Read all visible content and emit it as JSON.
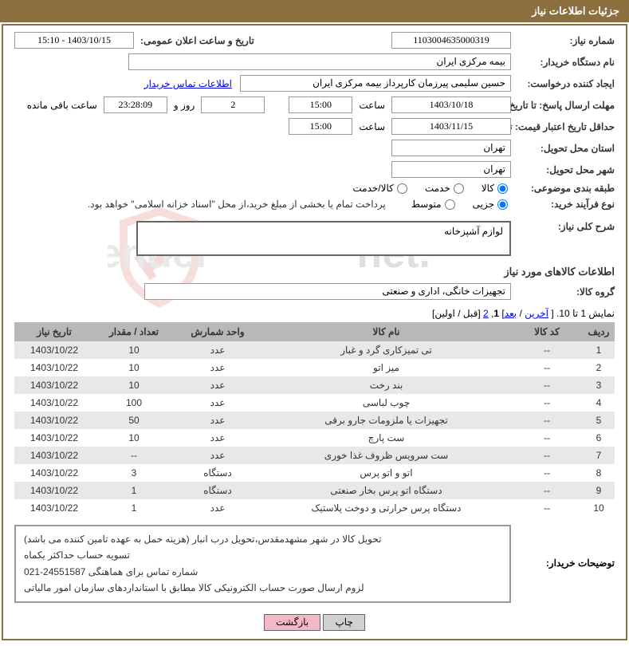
{
  "colors": {
    "header_bg": "#8b6f3f",
    "border": "#8b6f3f",
    "th_bg": "#b8b8b8",
    "row_alt": "#e8e8e8",
    "link": "#0000ee",
    "btn_back_bg": "#f5b8c8",
    "btn_print_bg": "#d0d0d0"
  },
  "header": {
    "title": "جزئیات اطلاعات نیاز"
  },
  "fields": {
    "need_no_label": "شماره نیاز:",
    "need_no": "1103004635000319",
    "announce_label": "تاریخ و ساعت اعلان عمومی:",
    "announce": "1403/10/15 - 15:10",
    "buyer_org_label": "نام دستگاه خریدار:",
    "buyer_org": "بیمه مرکزی ایران",
    "requester_label": "ایجاد کننده درخواست:",
    "requester": "حسین سلیمی پیرزمان کارپرداز بیمه مرکزی ایران",
    "contact_link": "اطلاعات تماس خریدار",
    "deadline_label": "مهلت ارسال پاسخ: تا تاریخ:",
    "deadline_date": "1403/10/18",
    "time_label": "ساعت",
    "deadline_time": "15:00",
    "days_left": "2",
    "days_and_label": "روز و",
    "countdown": "23:28:09",
    "remaining_label": "ساعت باقی مانده",
    "validity_label": "حداقل تاریخ اعتبار قیمت: تا تاریخ:",
    "validity_date": "1403/11/15",
    "validity_time": "15:00",
    "province_label": "استان محل تحویل:",
    "province": "تهران",
    "city_label": "شهر محل تحویل:",
    "city": "تهران",
    "category_label": "طبقه بندی موضوعی:",
    "cat_goods": "کالا",
    "cat_service": "خدمت",
    "cat_both": "کالا/خدمت",
    "process_label": "نوع فرآیند خرید:",
    "proc_small": "جزیی",
    "proc_medium": "متوسط",
    "process_note": "پرداخت تمام یا بخشی از مبلغ خرید،از محل \"اسناد خزانه اسلامی\" خواهد بود.",
    "overall_label": "شرح کلی نیاز:",
    "overall": "لوازم آشپزخانه"
  },
  "goods_section": {
    "title": "اطلاعات کالاهای مورد نیاز",
    "group_label": "گروه کالا:",
    "group": "تجهیزات خانگی، اداری و صنعتی"
  },
  "pagination": {
    "text_prefix": "نمایش 1 تا 10. [ ",
    "last": "آخرین",
    "sep1": " / ",
    "next": "بعد",
    "sep2": "] ",
    "p1": "1",
    "comma": ", ",
    "p2": "2",
    "rest": " [قبل / اولین]"
  },
  "table": {
    "columns": [
      "ردیف",
      "کد کالا",
      "نام کالا",
      "واحد شمارش",
      "تعداد / مقدار",
      "تاریخ نیاز"
    ],
    "rows": [
      [
        "1",
        "--",
        "تی تمیزکاری گرد و غبار",
        "عدد",
        "10",
        "1403/10/22"
      ],
      [
        "2",
        "--",
        "میز اتو",
        "عدد",
        "10",
        "1403/10/22"
      ],
      [
        "3",
        "--",
        "بند رخت",
        "عدد",
        "10",
        "1403/10/22"
      ],
      [
        "4",
        "--",
        "چوب لباسی",
        "عدد",
        "100",
        "1403/10/22"
      ],
      [
        "5",
        "--",
        "تجهیزات یا ملزومات جارو برقی",
        "عدد",
        "50",
        "1403/10/22"
      ],
      [
        "6",
        "--",
        "ست پارچ",
        "عدد",
        "10",
        "1403/10/22"
      ],
      [
        "7",
        "--",
        "ست سرویس ظروف غذا خوری",
        "عدد",
        "--",
        "1403/10/22"
      ],
      [
        "8",
        "--",
        "اتو و اتو پرس",
        "دستگاه",
        "3",
        "1403/10/22"
      ],
      [
        "9",
        "--",
        "دستگاه اتو پرس بخار صنعتی",
        "دستگاه",
        "1",
        "1403/10/22"
      ],
      [
        "10",
        "--",
        "دستگاه پرس حرارتی و دوخت پلاستیک",
        "عدد",
        "1",
        "1403/10/22"
      ]
    ]
  },
  "description": {
    "label": "توضیحات خریدار:",
    "line1": "تحویل کالا در شهر مشهدمقدس،تحویل درب انبار (هزینه حمل به عهده تامین کننده می باشد)",
    "line2": "تسویه حساب حداکثر یکماه",
    "line3": "شماره تماس برای هماهنگی 24551587-021",
    "line4": "لزوم ارسال صورت حساب الکترونیکی کالا مطابق با استانداردهای سازمان امور مالیاتی"
  },
  "buttons": {
    "print": "چاپ",
    "back": "بازگشت"
  },
  "watermark": {
    "text": "AriaTender.net",
    "shield_color": "#c13a2e",
    "text_color": "#888888"
  }
}
